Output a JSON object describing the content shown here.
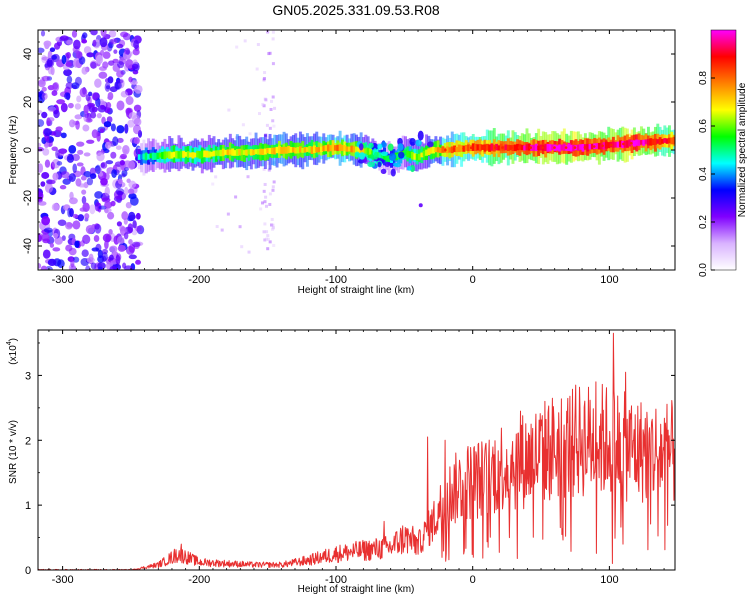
{
  "title": "GN05.2025.331.09.53.R08",
  "chart_data": [
    {
      "type": "heatmap",
      "xlabel": "Height of straight line (km)",
      "ylabel": "Frequency (Hz)",
      "xlim": [
        -318,
        148
      ],
      "ylim": [
        -50,
        50
      ],
      "x_ticks": [
        -300,
        -200,
        -100,
        0,
        100
      ],
      "y_ticks": [
        -40,
        -20,
        0,
        20,
        40
      ],
      "colorbar": {
        "label": "Normalized spectral amplitude",
        "range": [
          0,
          1
        ],
        "ticks": [
          "0.0",
          "0.2",
          "0.4",
          "0.6",
          "0.8"
        ],
        "colors": [
          "#ffffff",
          "#d9b3ff",
          "#8000ff",
          "#0000ff",
          "#00ffff",
          "#00ff00",
          "#ffff00",
          "#ff8000",
          "#ff0000",
          "#ff00ff"
        ]
      },
      "ridge": {
        "x": [
          -245,
          -220,
          -200,
          -180,
          -160,
          -140,
          -120,
          -100,
          -80,
          -70,
          -60,
          -50,
          -40,
          -30,
          -20,
          0,
          20,
          40,
          60,
          80,
          100,
          120,
          148
        ],
        "freq": [
          -3,
          -2,
          -2,
          -1,
          -1,
          0,
          0,
          1,
          0,
          -2,
          -4,
          -1,
          -3,
          0,
          0,
          1,
          1,
          1,
          1,
          1,
          2,
          3,
          4
        ],
        "peak_amplitude": [
          0.35,
          0.55,
          0.55,
          0.6,
          0.6,
          0.65,
          0.6,
          0.7,
          0.6,
          0.45,
          0.4,
          0.5,
          0.55,
          0.6,
          0.7,
          0.75,
          0.8,
          0.85,
          0.9,
          0.9,
          0.85,
          0.9,
          0.75
        ]
      },
      "noise_region_x": [
        -318,
        -243
      ],
      "noise_bands_x": [
        -195,
        -150
      ]
    },
    {
      "type": "line",
      "xlabel": "Height of straight line (km)",
      "ylabel": "SNR (10 * v/v)",
      "multiplier_label": "(x10",
      "multiplier_exp": "4",
      "multiplier_close": ")",
      "xlim": [
        -318,
        148
      ],
      "ylim": [
        0,
        3.7
      ],
      "x_ticks": [
        -300,
        -200,
        -100,
        0,
        100
      ],
      "y_ticks": [
        0,
        1,
        2,
        3
      ],
      "series_color": "#e83030",
      "envelope": {
        "x": [
          -318,
          -250,
          -230,
          -215,
          -200,
          -180,
          -160,
          -140,
          -120,
          -100,
          -80,
          -60,
          -50,
          -40,
          -30,
          -20,
          -10,
          0,
          10,
          20,
          40,
          60,
          80,
          100,
          110,
          120,
          148
        ],
        "y": [
          0.0,
          0.0,
          0.08,
          0.25,
          0.12,
          0.1,
          0.08,
          0.08,
          0.15,
          0.25,
          0.3,
          0.35,
          0.5,
          0.4,
          0.7,
          1.1,
          1.3,
          1.4,
          1.4,
          1.6,
          1.7,
          1.9,
          2.0,
          2.0,
          1.9,
          1.85,
          1.8
        ]
      },
      "peaks": [
        {
          "x": -213,
          "y": 0.4
        },
        {
          "x": -65,
          "y": 0.75
        },
        {
          "x": -33,
          "y": 2.05
        },
        {
          "x": -20,
          "y": 2.0
        },
        {
          "x": 35,
          "y": 2.45
        },
        {
          "x": 75,
          "y": 2.5
        },
        {
          "x": 90,
          "y": 2.9
        },
        {
          "x": 103,
          "y": 3.65
        },
        {
          "x": 112,
          "y": 3.05
        }
      ],
      "dips": [
        {
          "x": 102,
          "y": 0.1
        },
        {
          "x": 110,
          "y": 0.4
        }
      ]
    }
  ]
}
